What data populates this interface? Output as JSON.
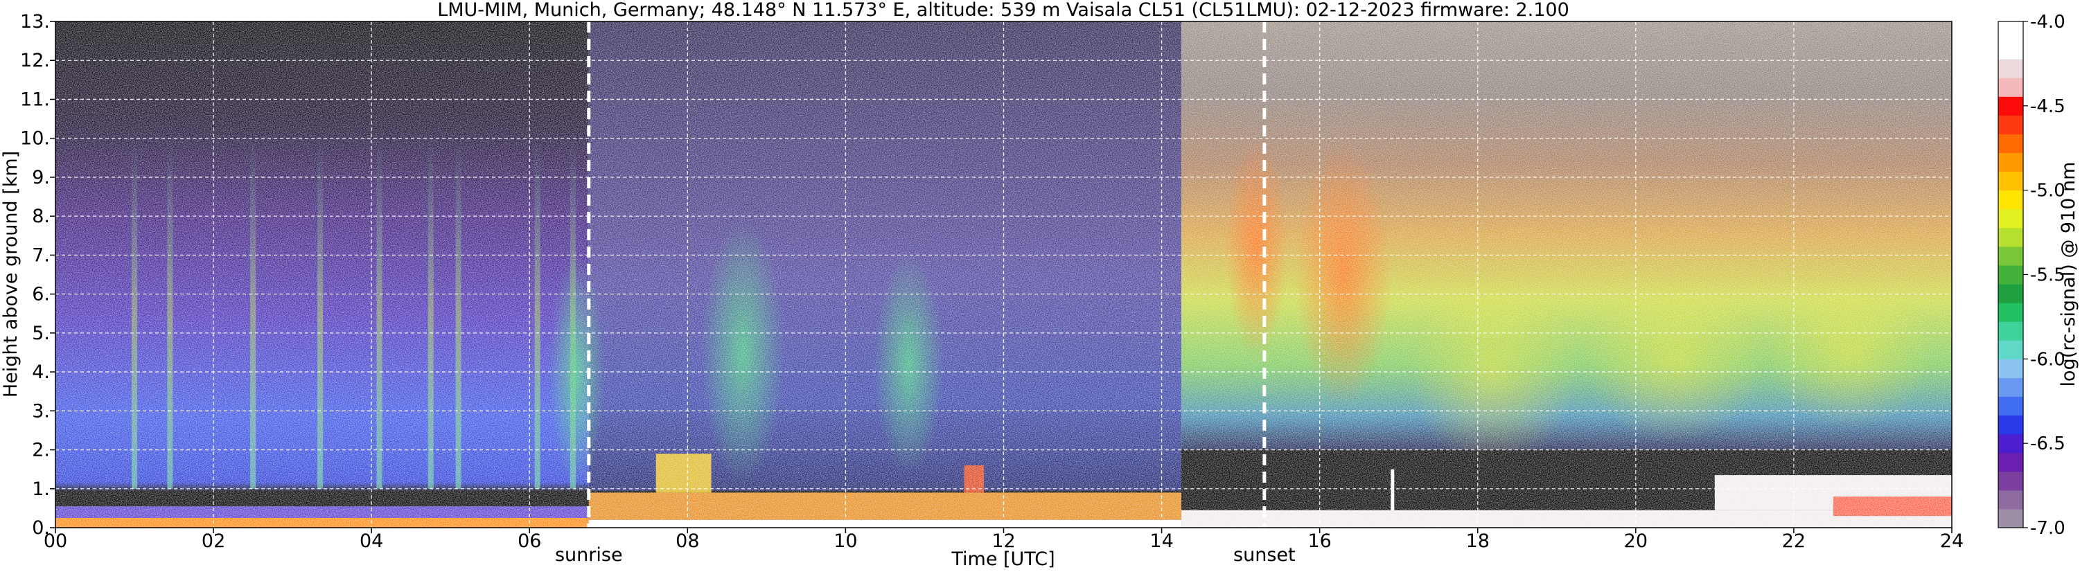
{
  "chart_data": {
    "type": "heatmap",
    "title": "LMU-MIM, Munich, Germany; 48.148° N 11.573° E, altitude: 539 m    Vaisala CL51 (CL51LMU): 02-12-2023    firmware: 2.100",
    "xlabel": "Time [UTC]",
    "ylabel": "Height above ground [km]",
    "colorbar_label": "log(rc-signal) @ 910 nm",
    "xlim": [
      0,
      24
    ],
    "ylim": [
      0,
      13
    ],
    "x_ticks": [
      0,
      2,
      4,
      6,
      8,
      10,
      12,
      14,
      16,
      18,
      20,
      22,
      24
    ],
    "x_tick_labels": [
      "00",
      "02",
      "04",
      "06",
      "08",
      "10",
      "12",
      "14",
      "16",
      "18",
      "20",
      "22",
      "24"
    ],
    "y_ticks": [
      0,
      1,
      2,
      3,
      4,
      5,
      6,
      7,
      8,
      9,
      10,
      11,
      12,
      13
    ],
    "y_tick_labels": [
      "0.",
      "1.",
      "2.",
      "3.",
      "4.",
      "5.",
      "6.",
      "7.",
      "8.",
      "9.",
      "10.",
      "11.",
      "12.",
      "13."
    ],
    "grid": true,
    "colorbar": {
      "range": [
        -7.0,
        -4.0
      ],
      "tick_values": [
        -7.0,
        -6.5,
        -6.0,
        -5.5,
        -5.0,
        -4.5,
        -4.0
      ],
      "tick_labels": [
        "-7.0",
        "-6.5",
        "-6.0",
        "-5.5",
        "-5.0",
        "-4.5",
        "-4.0"
      ],
      "colors": [
        "#9d8fa8",
        "#8d6aa0",
        "#7c3fa0",
        "#6a1fb0",
        "#4b1fd0",
        "#2a3ae8",
        "#3f6cf0",
        "#6a9af0",
        "#8cc4f0",
        "#5fd8c8",
        "#3fd29a",
        "#22c060",
        "#1fa040",
        "#44b23a",
        "#7ac83a",
        "#b6e02f",
        "#e2ef20",
        "#ffe400",
        "#ffc000",
        "#ff9a00",
        "#ff6a00",
        "#ff3a10",
        "#ff0a0a",
        "#f4b8b8",
        "#eadadc",
        "#ffffff",
        "#ffffff"
      ]
    },
    "events": [
      {
        "name": "sunrise",
        "time_utc": 6.75
      },
      {
        "name": "sunset",
        "time_utc": 15.3
      }
    ],
    "regime_change_time_utc": 14.25
  }
}
